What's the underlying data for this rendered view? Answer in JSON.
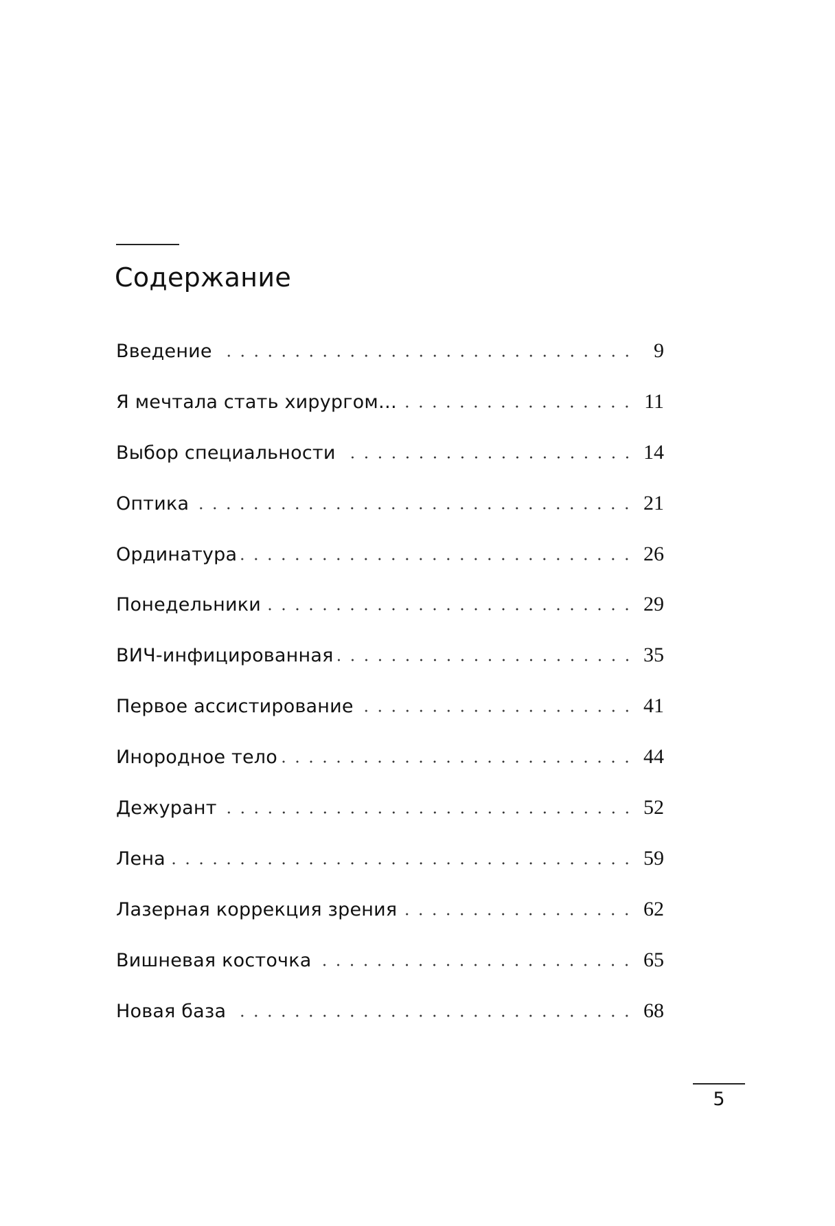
{
  "title": "Содержание",
  "entries": [
    {
      "label": "Введение",
      "page": "9"
    },
    {
      "label": "Я мечтала стать хирургом…",
      "page": "11"
    },
    {
      "label": "Выбор специальности",
      "page": "14"
    },
    {
      "label": "Оптика",
      "page": "21"
    },
    {
      "label": "Ординатура",
      "page": "26"
    },
    {
      "label": "Понедельники",
      "page": "29"
    },
    {
      "label": "ВИЧ-инфицированная",
      "page": "35"
    },
    {
      "label": "Первое ассистирование",
      "page": "41"
    },
    {
      "label": "Инородное тело",
      "page": "44"
    },
    {
      "label": "Дежурант",
      "page": "52"
    },
    {
      "label": "Лена",
      "page": "59"
    },
    {
      "label": "Лазерная коррекция зрения",
      "page": "62"
    },
    {
      "label": "Вишневая косточка",
      "page": "65"
    },
    {
      "label": "Новая база",
      "page": "68"
    }
  ],
  "page_number": "5"
}
